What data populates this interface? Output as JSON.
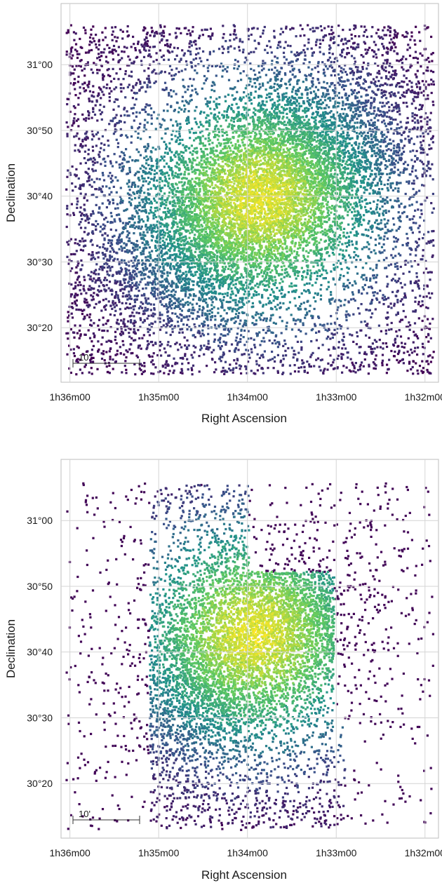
{
  "chart_data": [
    {
      "type": "heatmap",
      "xlabel": "Right Ascension",
      "ylabel": "Declination",
      "x_ticks": [
        "1h36m00",
        "1h35m00",
        "1h34m00",
        "1h33m00",
        "1h32m00"
      ],
      "y_ticks": [
        "31°00",
        "30°50",
        "30°40",
        "30°30",
        "30°20"
      ],
      "x_tick_values_deg": [
        24.0,
        23.75,
        23.5,
        23.25,
        23.0
      ],
      "y_tick_values_deg": [
        31.0,
        30.8333,
        30.6667,
        30.5,
        30.3333
      ],
      "xlim_deg": [
        24.025,
        22.962
      ],
      "ylim_deg": [
        30.195,
        31.155
      ],
      "grid": true,
      "scale_bar": {
        "label": "10'",
        "length_arcmin": 10
      },
      "colormap": "viridis",
      "density_peak": {
        "ra_deg": 23.465,
        "dec_deg": 30.66
      },
      "footprint": "full rectangular field",
      "field_ra_deg": [
        24.01,
        22.975
      ],
      "field_dec_deg": [
        30.215,
        31.1
      ]
    },
    {
      "type": "heatmap",
      "xlabel": "Right Ascension",
      "ylabel": "Declination",
      "x_ticks": [
        "1h36m00",
        "1h35m00",
        "1h34m00",
        "1h33m00",
        "1h32m00"
      ],
      "y_ticks": [
        "31°00",
        "30°50",
        "30°40",
        "30°30",
        "30°20"
      ],
      "x_tick_values_deg": [
        24.0,
        23.75,
        23.5,
        23.25,
        23.0
      ],
      "y_tick_values_deg": [
        31.0,
        30.8333,
        30.6667,
        30.5,
        30.3333
      ],
      "xlim_deg": [
        24.025,
        22.962
      ],
      "ylim_deg": [
        30.195,
        31.155
      ],
      "grid": true,
      "scale_bar": {
        "label": "10'",
        "length_arcmin": 10
      },
      "colormap": "viridis",
      "density_peak": {
        "ra_deg": 23.48,
        "dec_deg": 30.71
      },
      "footprint": "stepped mosaic of pointings",
      "pointings_deg": [
        {
          "ra": [
            23.775,
            23.495
          ],
          "dec": [
            30.77,
            31.09
          ]
        },
        {
          "ra": [
            23.775,
            23.255
          ],
          "dec": [
            30.49,
            30.87
          ]
        },
        {
          "ra": [
            23.775,
            23.225
          ],
          "dec": [
            30.22,
            30.49
          ]
        }
      ]
    }
  ],
  "colors": {
    "background": "#ffffff",
    "grid": "#d4d4d4",
    "frame": "#bdbdbd",
    "low_density": "#45117a",
    "mid_density": "#2b8c8c",
    "high_density": "#b5de2b"
  }
}
